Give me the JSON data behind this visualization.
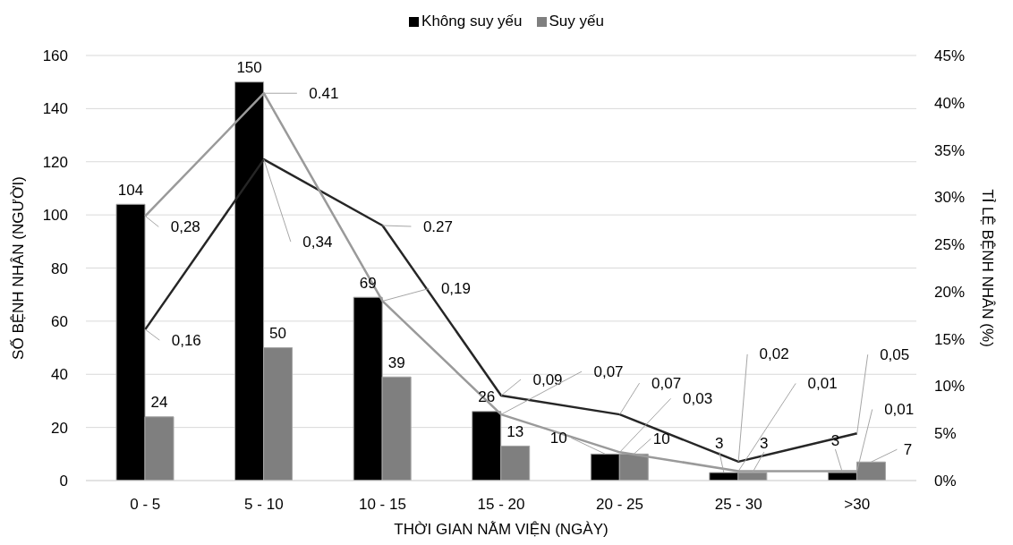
{
  "chart_data": {
    "type": "bar",
    "categories": [
      "0 - 5",
      "5 - 10",
      "10 - 15",
      "15 - 20",
      "20 - 25",
      "25 - 30",
      ">30"
    ],
    "xlabel": "THỜI GIAN NẰM VIỆN (NGÀY)",
    "ylabel": "SỐ BỆNH NHÂN (NGƯỜI)",
    "y2label": "TỈ LỆ BỆNH NHÂN (%)",
    "series": [
      {
        "name": "Không suy yếu",
        "color": "#000000",
        "values": [
          104,
          150,
          69,
          26,
          10,
          3,
          3
        ]
      },
      {
        "name": "Suy yếu",
        "color": "#7f7f7f",
        "values": [
          24,
          50,
          39,
          13,
          10,
          3,
          7
        ]
      },
      {
        "type": "line",
        "axis": "y2",
        "color": "#262626",
        "values": [
          0.16,
          0.34,
          0.27,
          0.09,
          0.07,
          0.02,
          0.05
        ],
        "value_labels": [
          "0,16",
          "0,34",
          "0.27",
          "0,09",
          "0,07",
          "0,02",
          "0,05"
        ]
      },
      {
        "type": "line",
        "axis": "y2",
        "color": "#9a9a9a",
        "values": [
          0.28,
          0.41,
          0.19,
          0.07,
          0.03,
          0.01,
          0.01
        ],
        "value_labels": [
          "0,28",
          "0.41",
          "0,19",
          "0,07",
          "0,03",
          "0,01",
          "0,01"
        ]
      }
    ],
    "data_labels": true,
    "ylim": [
      0,
      160
    ],
    "yticks": [
      0,
      20,
      40,
      60,
      80,
      100,
      120,
      140,
      160
    ],
    "y2lim": [
      0,
      0.45
    ],
    "y2ticks": [
      {
        "value": 0,
        "label": "0%"
      },
      {
        "value": 0.05,
        "label": "5%"
      },
      {
        "value": 0.1,
        "label": "10%"
      },
      {
        "value": 0.15,
        "label": "15%"
      },
      {
        "value": 0.2,
        "label": "20%"
      },
      {
        "value": 0.25,
        "label": "25%"
      },
      {
        "value": 0.3,
        "label": "30%"
      },
      {
        "value": 0.35,
        "label": "35%"
      },
      {
        "value": 0.4,
        "label": "40%"
      },
      {
        "value": 0.45,
        "label": "45%"
      }
    ],
    "grid": "y",
    "legend": "top"
  }
}
